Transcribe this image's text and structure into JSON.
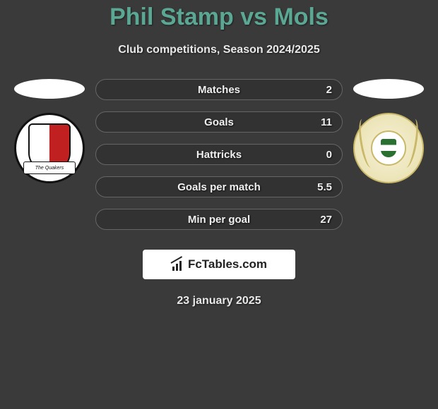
{
  "title": "Phil Stamp vs Mols",
  "subtitle": "Club competitions, Season 2024/2025",
  "date": "23 january 2025",
  "brand": "FcTables.com",
  "colors": {
    "title_color": "#5aa893",
    "background": "#3a3a3a",
    "bar_border": "#666666",
    "text": "#f0f0f0",
    "brand_bg": "#ffffff",
    "brand_text": "#222222"
  },
  "left_team": {
    "name": "The Quakers",
    "badge_primary": "#c02020",
    "badge_secondary": "#ffffff"
  },
  "right_team": {
    "name": "Mols",
    "badge_primary": "#c9b868",
    "badge_secondary": "#2a7030"
  },
  "stats": [
    {
      "label": "Matches",
      "value": "2",
      "fill_pct": 0,
      "fill_color": "transparent"
    },
    {
      "label": "Goals",
      "value": "11",
      "fill_pct": 0,
      "fill_color": "transparent"
    },
    {
      "label": "Hattricks",
      "value": "0",
      "fill_pct": 0,
      "fill_color": "transparent"
    },
    {
      "label": "Goals per match",
      "value": "5.5",
      "fill_pct": 0,
      "fill_color": "transparent"
    },
    {
      "label": "Min per goal",
      "value": "27",
      "fill_pct": 0,
      "fill_color": "transparent"
    }
  ]
}
